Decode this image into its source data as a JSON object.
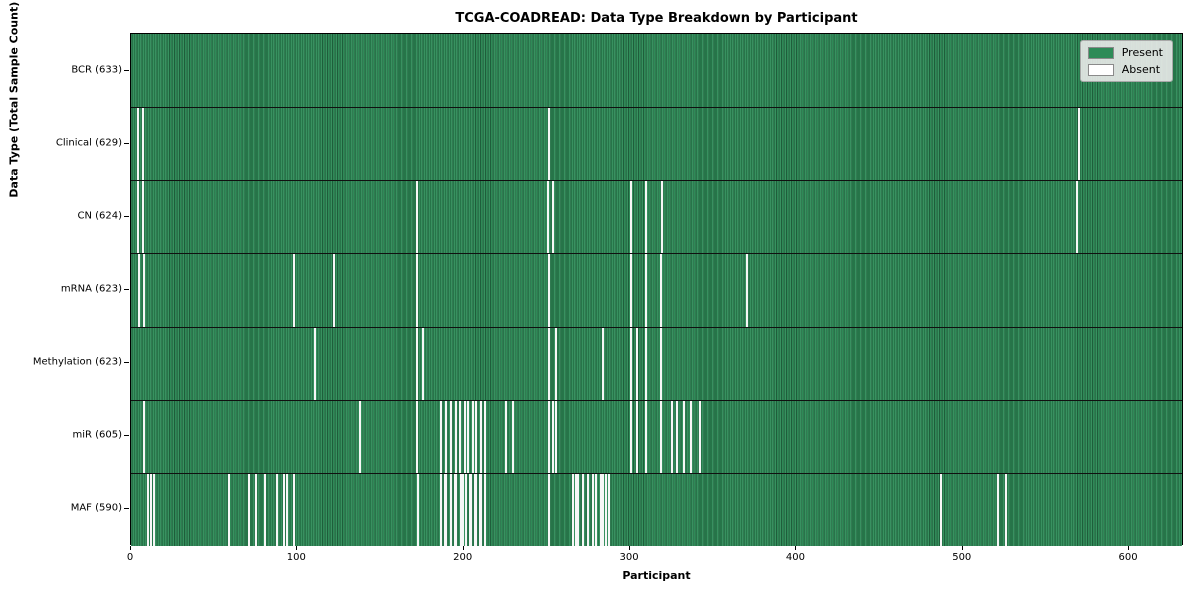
{
  "title": "TCGA-COADREAD: Data Type Breakdown by Participant",
  "colors": {
    "present": "#2e8b57",
    "absent": "#ffffff",
    "row_separator": "#101010",
    "legend_background": "#eaeaea"
  },
  "legend": {
    "present_label": "Present",
    "absent_label": "Absent"
  },
  "chart_data": {
    "type": "heatmap",
    "title": "TCGA-COADREAD: Data Type Breakdown by Participant",
    "xlabel": "Participant",
    "ylabel": "Data Type (Total Sample Count)",
    "legend_entries": [
      "Present",
      "Absent"
    ],
    "legend_position": "upper right",
    "grid": false,
    "n_participants": 633,
    "xlim": [
      0,
      633
    ],
    "x_ticks": [
      0,
      100,
      200,
      300,
      400,
      500,
      600
    ],
    "rows": [
      {
        "name": "BCR",
        "label": "BCR (633)",
        "total_present": 633,
        "absent_participants": []
      },
      {
        "name": "Clinical",
        "label": "Clinical (629)",
        "total_present": 629,
        "absent_participants": [
          4,
          7,
          252,
          571
        ]
      },
      {
        "name": "CN",
        "label": "CN (624)",
        "total_present": 624,
        "absent_participants": [
          4,
          7,
          172,
          251,
          254,
          301,
          310,
          320,
          570
        ]
      },
      {
        "name": "mRNA",
        "label": "mRNA (623)",
        "total_present": 623,
        "absent_participants": [
          5,
          8,
          98,
          122,
          172,
          252,
          301,
          310,
          319,
          371
        ]
      },
      {
        "name": "Methylation",
        "label": "Methylation (623)",
        "total_present": 623,
        "absent_participants": [
          111,
          172,
          176,
          252,
          256,
          284,
          301,
          305,
          310,
          319
        ]
      },
      {
        "name": "miR",
        "label": "miR (605)",
        "total_present": 605,
        "absent_participants": [
          8,
          138,
          172,
          187,
          190,
          193,
          196,
          198,
          201,
          203,
          206,
          208,
          211,
          213,
          226,
          230,
          252,
          254,
          256,
          301,
          305,
          310,
          319,
          326,
          329,
          333,
          337,
          343
        ]
      },
      {
        "name": "MAF",
        "label": "MAF (590)",
        "total_present": 590,
        "absent_participants": [
          10,
          12,
          14,
          59,
          71,
          75,
          81,
          88,
          92,
          94,
          98,
          173,
          187,
          189,
          190,
          193,
          195,
          196,
          199,
          200,
          202,
          204,
          205,
          207,
          208,
          210,
          211,
          213,
          252,
          266,
          268,
          269,
          272,
          275,
          278,
          280,
          283,
          284,
          286,
          288,
          488,
          522,
          527
        ]
      }
    ]
  }
}
